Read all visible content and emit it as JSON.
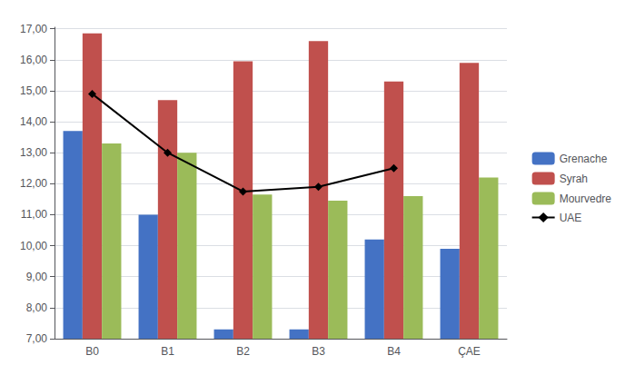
{
  "chart_data": {
    "type": "bar",
    "categories": [
      "B0",
      "B1",
      "B2",
      "B3",
      "B4",
      "ÇAE"
    ],
    "series": [
      {
        "name": "Grenache",
        "color": "#4472C4",
        "values": [
          13.7,
          11.0,
          7.3,
          7.3,
          10.2,
          9.9
        ]
      },
      {
        "name": "Syrah",
        "color": "#C0504D",
        "values": [
          16.85,
          14.7,
          15.95,
          16.6,
          15.3,
          15.9
        ]
      },
      {
        "name": "Mourvedre",
        "color": "#9BBB59",
        "values": [
          13.3,
          13.0,
          11.65,
          11.45,
          11.6,
          12.2
        ]
      },
      {
        "name": "UAE",
        "type": "line",
        "color": "#000000",
        "marker": "diamond",
        "values": [
          14.9,
          13.0,
          11.75,
          11.9,
          12.5,
          null
        ]
      }
    ],
    "ylim": [
      7.0,
      17.05
    ],
    "yticks": [
      {
        "value": 7.0,
        "label": "7,00"
      },
      {
        "value": 8.0,
        "label": "8,00"
      },
      {
        "value": 9.0,
        "label": "9,00"
      },
      {
        "value": 10.0,
        "label": "10,00"
      },
      {
        "value": 11.0,
        "label": "11,00"
      },
      {
        "value": 12.0,
        "label": "12,00"
      },
      {
        "value": 13.0,
        "label": "13,00"
      },
      {
        "value": 14.0,
        "label": "14,00"
      },
      {
        "value": 15.0,
        "label": "15,00"
      },
      {
        "value": 16.0,
        "label": "16,00"
      },
      {
        "value": 17.0,
        "label": "17,00"
      }
    ],
    "grid": true,
    "legend": "right"
  }
}
